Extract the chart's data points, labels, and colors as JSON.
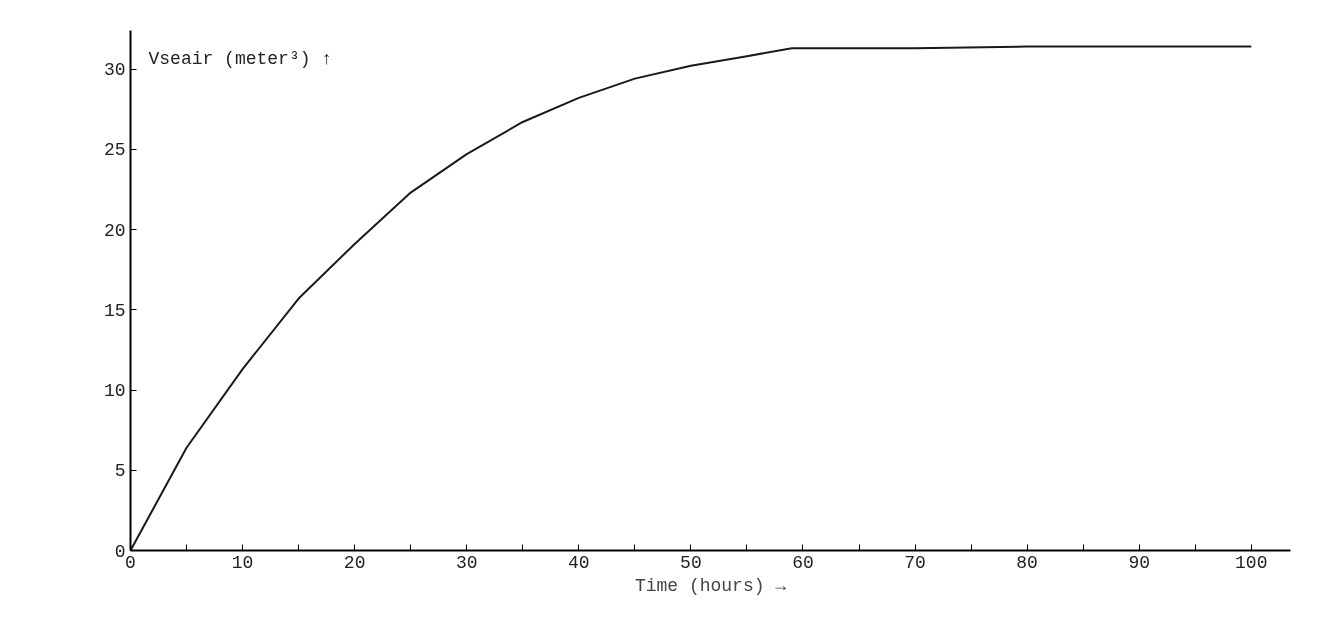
{
  "chart_data": {
    "type": "line",
    "xlabel": "Time (hours) →",
    "ylabel": "Vseair (meter³) ↑",
    "x": [
      0,
      5,
      10,
      15,
      20,
      25,
      30,
      35,
      40,
      45,
      50,
      55,
      59,
      70,
      80,
      90,
      100
    ],
    "series": [
      {
        "color": "#1a1a1a",
        "values": [
          0,
          6.4,
          11.3,
          15.7,
          19.1,
          22.3,
          24.7,
          26.7,
          28.2,
          29.4,
          30.2,
          30.8,
          31.3,
          31.3,
          31.4,
          31.4,
          31.4
        ]
      }
    ],
    "xlim": [
      0,
      103.5
    ],
    "ylim": [
      0,
      32.4
    ],
    "xticks": [
      0,
      {
        "value": 5,
        "label": null
      },
      10,
      {
        "value": 15,
        "label": null
      },
      20,
      {
        "value": 25,
        "label": null
      },
      30,
      {
        "value": 35,
        "label": null
      },
      40,
      {
        "value": 45,
        "label": null
      },
      50,
      {
        "value": 55,
        "label": null
      },
      60,
      {
        "value": 65,
        "label": null
      },
      70,
      {
        "value": 75,
        "label": null
      },
      80,
      {
        "value": 85,
        "label": null
      },
      90,
      {
        "value": 95,
        "label": null
      },
      100
    ],
    "yticks": [
      0,
      5,
      10,
      15,
      20,
      25,
      30
    ],
    "grid": false,
    "marker": "none",
    "line_style": "solid"
  }
}
